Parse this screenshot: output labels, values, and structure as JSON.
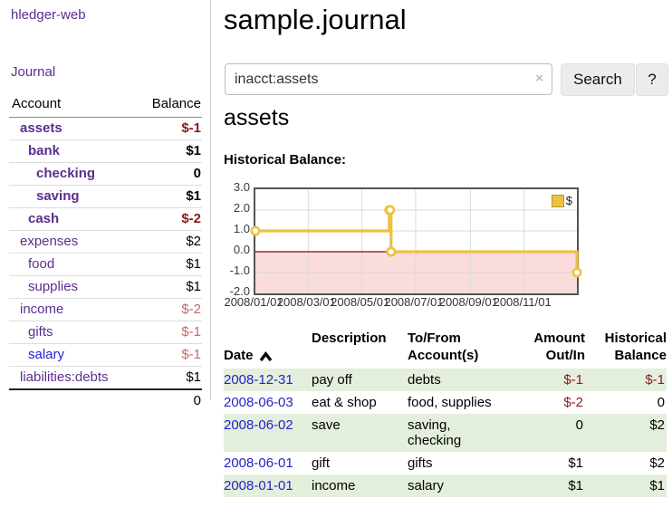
{
  "theme": {
    "colors": {
      "purple": "#5b2d90",
      "blue": "#2222cc",
      "dark_red": "#8b1a1a",
      "muted_red": "#c26a6a",
      "row_green": "#e3efdc",
      "chart_gold": "#edc240",
      "chart_pink": "#fbdcdc",
      "zero_line_red": "#8b0000",
      "grid_gray": "#d9d9d9"
    }
  },
  "sidebar": {
    "app_title": "hledger-web",
    "journal_label": "Journal",
    "accounts_table": {
      "headers": {
        "account": "Account",
        "balance": "Balance"
      },
      "rows": [
        {
          "name": "assets",
          "indent": 1,
          "bold": true,
          "amount": "$-1",
          "amount_tone": "negative"
        },
        {
          "name": "bank",
          "indent": 2,
          "bold": true,
          "amount": "$1",
          "amount_tone": "normal"
        },
        {
          "name": "checking",
          "indent": 3,
          "bold": true,
          "amount": "0",
          "amount_tone": "normal"
        },
        {
          "name": "saving",
          "indent": 3,
          "bold": true,
          "amount": "$1",
          "amount_tone": "normal"
        },
        {
          "name": "cash",
          "indent": 2,
          "bold": true,
          "amount": "$-2",
          "amount_tone": "negative"
        },
        {
          "name": "expenses",
          "indent": 1,
          "bold": false,
          "amount": "$2",
          "amount_tone": "normal"
        },
        {
          "name": "food",
          "indent": 2,
          "bold": false,
          "amount": "$1",
          "amount_tone": "normal"
        },
        {
          "name": "supplies",
          "indent": 2,
          "bold": false,
          "amount": "$1",
          "amount_tone": "normal"
        },
        {
          "name": "income",
          "indent": 1,
          "bold": false,
          "amount": "$-2",
          "amount_tone": "negative-muted"
        },
        {
          "name": "gifts",
          "indent": 2,
          "bold": false,
          "amount": "$-1",
          "amount_tone": "negative-muted"
        },
        {
          "name": "salary",
          "indent": 2,
          "bold": false,
          "amount": "$-1",
          "amount_tone": "negative-muted",
          "link_tone": "blue"
        },
        {
          "name": "liabilities:debts",
          "indent": 1,
          "bold": false,
          "amount": "$1",
          "amount_tone": "normal"
        }
      ],
      "total": "0"
    }
  },
  "main": {
    "title": "sample.journal",
    "search": {
      "value": "inacct:assets",
      "clear_icon": "×",
      "button_label": "Search",
      "help_label": "?"
    },
    "section_heading": "assets",
    "chart_label": "Historical Balance:"
  },
  "chart_data": {
    "type": "line",
    "step": true,
    "title": "Historical Balance",
    "series": [
      {
        "name": "$",
        "points": [
          [
            "2008-01-01",
            1.0
          ],
          [
            "2008-06-01",
            2.0
          ],
          [
            "2008-06-02",
            2.0
          ],
          [
            "2008-06-03",
            0.0
          ],
          [
            "2008-12-31",
            -1.0
          ]
        ]
      }
    ],
    "x_range": [
      "2008-01-01",
      "2008-12-31"
    ],
    "ylim": [
      -2.0,
      3.0
    ],
    "y_ticks": [
      {
        "v": 3,
        "label": "3.0"
      },
      {
        "v": 2,
        "label": "2.0"
      },
      {
        "v": 1,
        "label": "1.0"
      },
      {
        "v": 0,
        "label": "0.0"
      },
      {
        "v": -1,
        "label": "-1.0"
      },
      {
        "v": -2,
        "label": "-2.0"
      }
    ],
    "x_ticks": [
      {
        "date": "2008-01-01",
        "label": "2008/01/01"
      },
      {
        "date": "2008-03-01",
        "label": "2008/03/01"
      },
      {
        "date": "2008-05-01",
        "label": "2008/05/01"
      },
      {
        "date": "2008-07-01",
        "label": "2008/07/01"
      },
      {
        "date": "2008-09-01",
        "label": "2008/09/01"
      },
      {
        "date": "2008-11-01",
        "label": "2008/11/01"
      }
    ],
    "legend": {
      "label": "$",
      "position": "top-right"
    },
    "negative_region_shaded": true,
    "grid": true
  },
  "transactions": {
    "headers": {
      "date": "Date",
      "description": "Description",
      "accounts": "To/From\nAccount(s)",
      "amount": "Amount\nOut/In",
      "balance": "Historical\nBalance"
    },
    "rows": [
      {
        "date": "2008-12-31",
        "description": "pay off",
        "accounts": "debts",
        "amount": "$-1",
        "balance": "$-1"
      },
      {
        "date": "2008-06-03",
        "description": "eat & shop",
        "accounts": "food, supplies",
        "amount": "$-2",
        "balance": "0"
      },
      {
        "date": "2008-06-02",
        "description": "save",
        "accounts": "saving,\nchecking",
        "amount": "0",
        "balance": "$2"
      },
      {
        "date": "2008-06-01",
        "description": "gift",
        "accounts": "gifts",
        "amount": "$1",
        "balance": "$2"
      },
      {
        "date": "2008-01-01",
        "description": "income",
        "accounts": "salary",
        "amount": "$1",
        "balance": "$1"
      }
    ]
  }
}
